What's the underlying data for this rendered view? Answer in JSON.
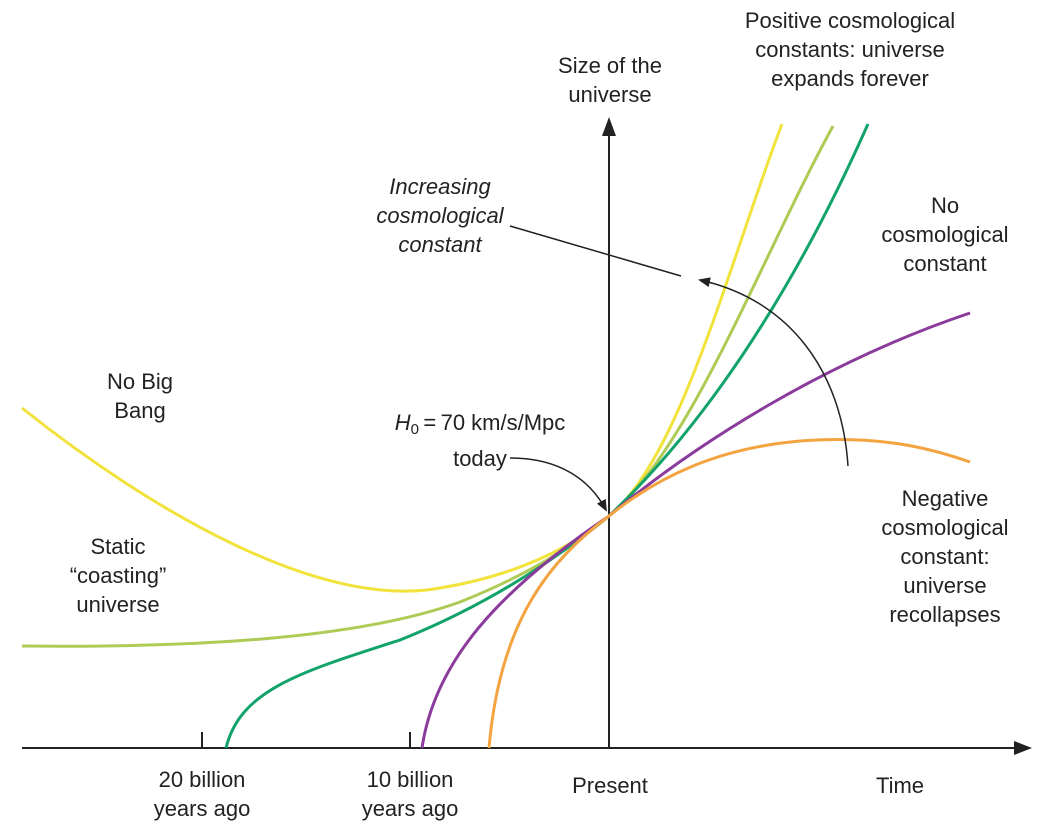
{
  "axes": {
    "y_label": [
      "Size of the",
      "universe"
    ],
    "x_label": "Time",
    "x_ticks": [
      [
        "20 billion",
        "years ago"
      ],
      [
        "10 billion",
        "years ago"
      ],
      [
        "Present"
      ]
    ]
  },
  "annotations": {
    "positive": [
      "Positive cosmological",
      "constants: universe",
      "expands forever"
    ],
    "increasing": [
      "Increasing",
      "cosmological",
      "constant"
    ],
    "none": [
      "No",
      "cosmological",
      "constant"
    ],
    "no_big_bang": [
      "No Big",
      "Bang"
    ],
    "static": [
      "Static",
      "“coasting”",
      "universe"
    ],
    "hubble_symbol": "H",
    "hubble_sub": "0",
    "hubble_rest": " = 70 km/s/Mpc",
    "hubble_line2": "today",
    "negative": [
      "Negative",
      "cosmological",
      "constant:",
      "universe",
      "recollapses"
    ]
  },
  "colors": {
    "yellow": "#f1e23c",
    "light_green": "#aecb55",
    "green": "#12a36b",
    "purple": "#8a3b9b",
    "orange": "#f3a340",
    "axis": "#222222"
  }
}
